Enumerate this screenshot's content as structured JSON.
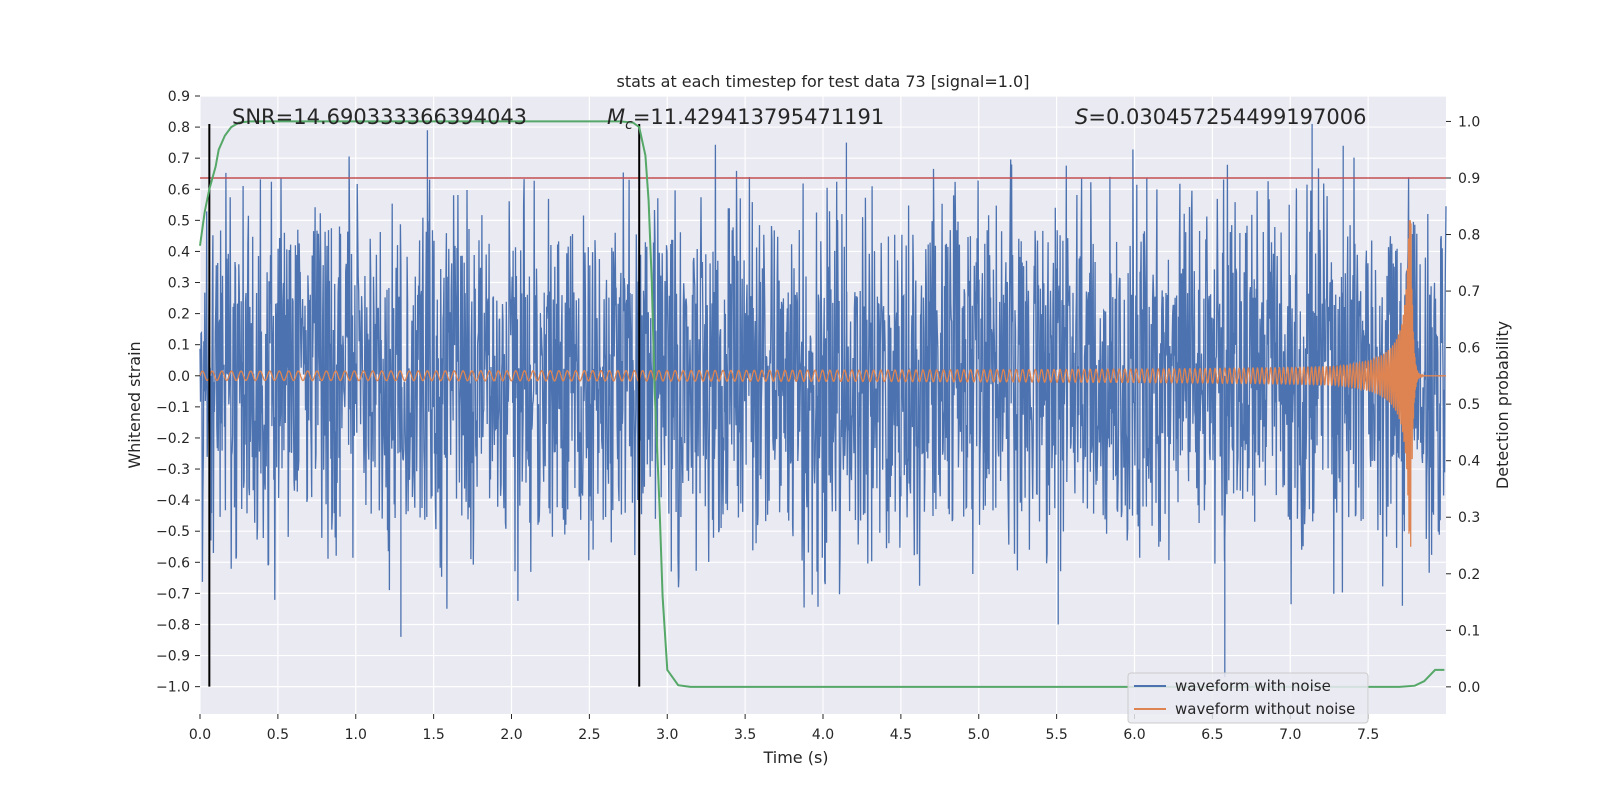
{
  "chart_data": {
    "type": "line",
    "title": "stats at each timestep for test data 73 [signal=1.0]",
    "xlabel": "Time (s)",
    "ylabel": "Whitened strain",
    "y2label": "Detection probability",
    "xlim": [
      0.0,
      8.0
    ],
    "ylim": [
      -1.088,
      0.9
    ],
    "y2lim": [
      -0.048,
      1.045
    ],
    "xticks": [
      0.0,
      0.5,
      1.0,
      1.5,
      2.0,
      2.5,
      3.0,
      3.5,
      4.0,
      4.5,
      5.0,
      5.5,
      6.0,
      6.5,
      7.0,
      7.5
    ],
    "xtick_labels": [
      "0.0",
      "0.5",
      "1.0",
      "1.5",
      "2.0",
      "2.5",
      "3.0",
      "3.5",
      "4.0",
      "4.5",
      "5.0",
      "5.5",
      "6.0",
      "6.5",
      "7.0",
      "7.5"
    ],
    "yticks": [
      0.9,
      0.8,
      0.7,
      0.6,
      0.5,
      0.4,
      0.3,
      0.2,
      0.1,
      0.0,
      -0.1,
      -0.2,
      -0.3,
      -0.4,
      -0.5,
      -0.6,
      -0.7,
      -0.8,
      -0.9,
      -1.0
    ],
    "ytick_labels": [
      "0.9",
      "0.8",
      "0.7",
      "0.6",
      "0.5",
      "0.4",
      "0.3",
      "0.2",
      "0.1",
      "0.0",
      "−0.1",
      "−0.2",
      "−0.3",
      "−0.4",
      "−0.5",
      "−0.6",
      "−0.7",
      "−0.8",
      "−0.9",
      "−1.0"
    ],
    "y2ticks": [
      1.0,
      0.9,
      0.8,
      0.7,
      0.6,
      0.5,
      0.4,
      0.3,
      0.2,
      0.1,
      0.0
    ],
    "y2tick_labels": [
      "1.0",
      "0.9",
      "0.8",
      "0.7",
      "0.6",
      "0.5",
      "0.4",
      "0.3",
      "0.2",
      "0.1",
      "0.0"
    ],
    "annotations": {
      "snr": "SNR=14.690333366394043",
      "mc_symbol": "M",
      "mc_sub": "c",
      "mc_value": "=11.429413795471191",
      "s_symbol": "S",
      "s_value": "=0.030457254499197006"
    },
    "vlines_x": [
      0.06,
      2.82
    ],
    "vline_y_range": [
      -1.0,
      0.81
    ],
    "threshold_prob": 0.9,
    "series": [
      {
        "name": "waveform with noise",
        "color": "#4c72b0",
        "kind": "noise",
        "typical_band": [
          -0.28,
          0.27
        ],
        "spike_max": 0.79,
        "spike_min": -0.97
      },
      {
        "name": "waveform without noise",
        "color": "#dd8452",
        "kind": "chirp",
        "merger_time": 7.78,
        "start_amplitude": 0.015,
        "peak_max": 0.5,
        "peak_min": -0.64
      },
      {
        "name": "detection probability",
        "color": "#55a868",
        "axis": "right",
        "x": [
          0.0,
          0.03,
          0.06,
          0.1,
          0.12,
          0.16,
          0.2,
          0.25,
          0.32,
          0.4,
          0.6,
          1.0,
          1.5,
          2.0,
          2.5,
          2.7,
          2.78,
          2.82,
          2.86,
          2.88,
          2.9,
          2.92,
          2.95,
          2.97,
          3.0,
          3.07,
          3.15,
          3.5,
          4.0,
          5.0,
          6.0,
          7.0,
          7.5,
          7.7,
          7.8,
          7.86,
          7.93,
          7.99
        ],
        "y": [
          0.78,
          0.84,
          0.88,
          0.92,
          0.95,
          0.975,
          0.99,
          0.998,
          1.0,
          1.0,
          1.0,
          1.0,
          1.0,
          1.0,
          1.0,
          1.0,
          0.998,
          0.99,
          0.94,
          0.86,
          0.72,
          0.52,
          0.32,
          0.16,
          0.03,
          0.003,
          0.0,
          0.0,
          0.0,
          0.0,
          0.0,
          0.0,
          0.0,
          0.0,
          0.002,
          0.01,
          0.03,
          0.03
        ]
      }
    ],
    "legend": [
      "waveform with noise",
      "waveform without noise"
    ],
    "legend_position": "lower-right",
    "colors": {
      "plot_bg": "#eaeaf2",
      "grid": "#ffffff",
      "noise": "#4c72b0",
      "signal": "#dd8452",
      "probability": "#55a868",
      "threshold": "#c44e52",
      "vline": "#000000",
      "text": "#262626"
    }
  }
}
